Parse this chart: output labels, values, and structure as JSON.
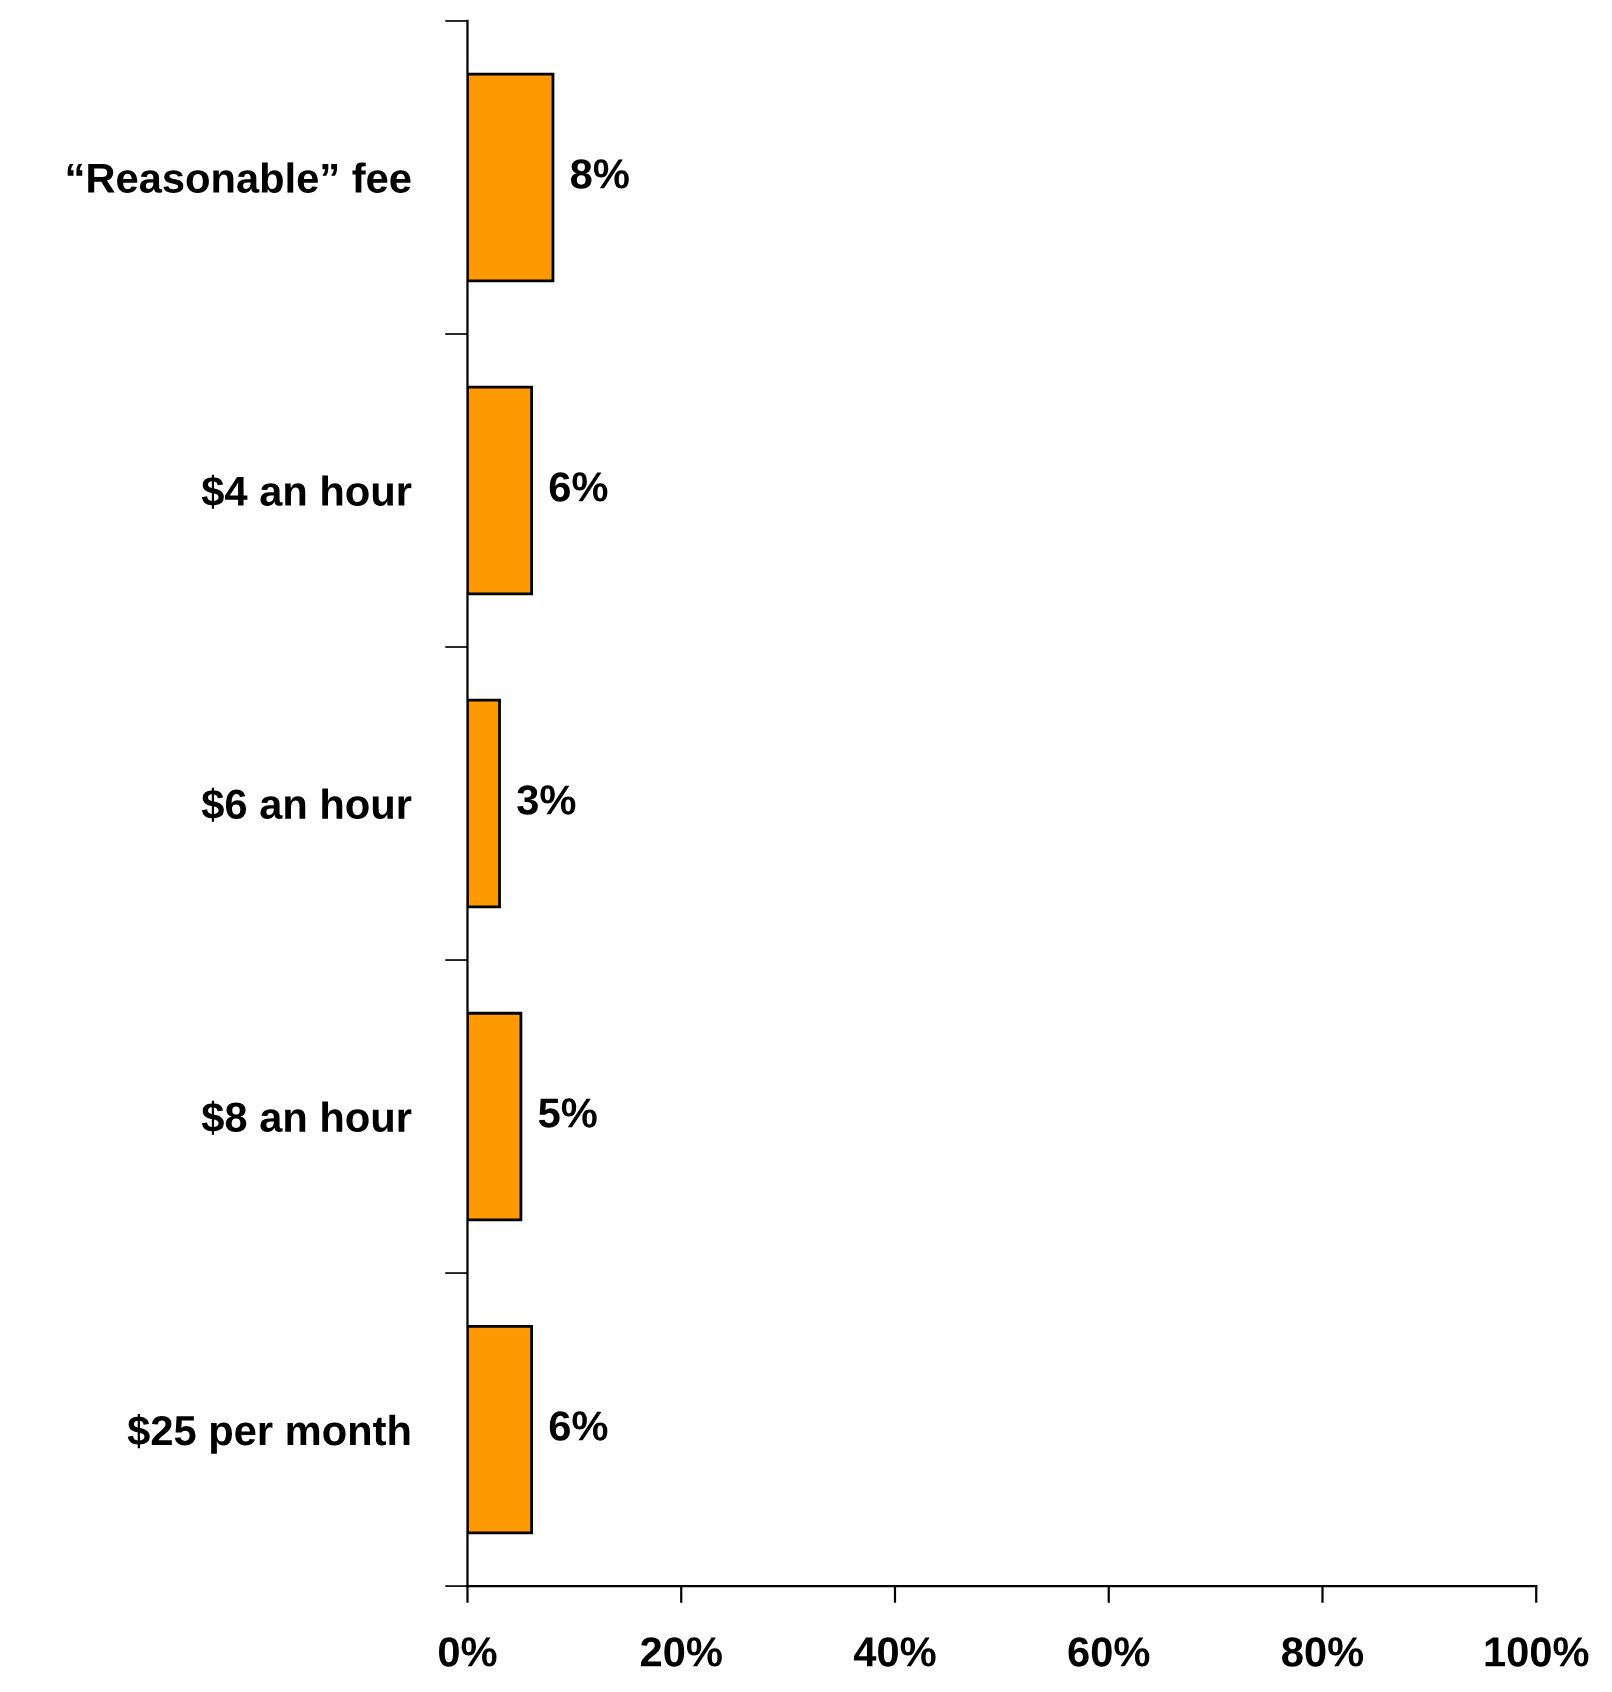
{
  "chart_data": {
    "type": "bar",
    "orientation": "horizontal",
    "categories": [
      "“Reasonable” fee",
      "$4 an hour",
      "$6 an hour",
      "$8 an hour",
      "$25 per month"
    ],
    "values": [
      8,
      6,
      3,
      5,
      6
    ],
    "value_labels": [
      "8%",
      "6%",
      "3%",
      "5%",
      "6%"
    ],
    "color": "#ff9900",
    "xlim": [
      0,
      100
    ],
    "xticks": [
      {
        "value": 0,
        "label": "0%"
      },
      {
        "value": 20,
        "label": "20%"
      },
      {
        "value": 40,
        "label": "40%"
      },
      {
        "value": 60,
        "label": "60%"
      },
      {
        "value": 80,
        "label": "80%"
      },
      {
        "value": 100,
        "label": "100%"
      }
    ],
    "grid": false,
    "legend": false
  }
}
